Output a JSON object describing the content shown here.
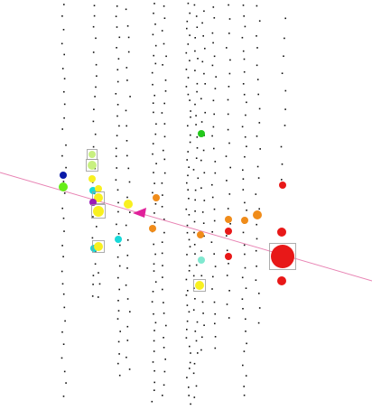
{
  "scene": {
    "background": "#ffffff",
    "dot_color": "#111111",
    "track_color": "#e884b4",
    "arrow_color": "#e0209a",
    "box_color": "#999999",
    "palette": {
      "red": "#e81818",
      "orange": "#f08c1a",
      "yellow": "#f8f020",
      "lime": "#c8f080",
      "green": "#22c81a",
      "bright_green": "#66ee18",
      "cyan": "#18d8d8",
      "aqua": "#80e8d0",
      "blue": "#0a1aa8",
      "purple": "#9a1ab8"
    }
  }
}
